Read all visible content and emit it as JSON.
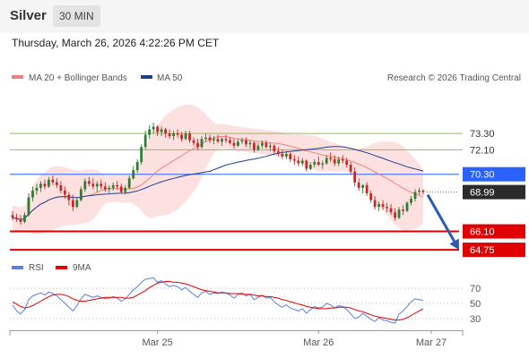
{
  "header": {
    "instrument": "Silver",
    "interval": "30 MIN",
    "datetime": "Thursday, March 26, 2026 4:22:26 PM CET"
  },
  "legend": {
    "ma20": "MA 20 + Bollinger Bands",
    "ma50": "MA 50",
    "credit": "Research © 2026 Trading Central"
  },
  "rsi_legend": {
    "rsi": "RSI",
    "ma": "9MA"
  },
  "colors": {
    "candle_up": "#2e7d32",
    "candle_down": "#c62828",
    "ma20": "#f08080",
    "ma50": "#1f3f8f",
    "band_fill": "#fde0e0",
    "resistance": "#8bc34a",
    "pivot": "#2962ff",
    "support": "#e00000",
    "last": "#2b2b2b",
    "arrow": "#2a5bb0",
    "rsi": "#5b7fe0",
    "rsi_ma": "#e00000"
  },
  "chart_data": {
    "type": "candlestick",
    "price_ylim": [
      63.9,
      76.2
    ],
    "x_axis_labels": [
      {
        "label": "Mar 25",
        "index": 36
      },
      {
        "label": "Mar 26",
        "index": 76
      },
      {
        "label": "Mar 27",
        "index": 104
      }
    ],
    "levels": [
      {
        "value": 73.3,
        "label": "73.30",
        "kind": "resistance"
      },
      {
        "value": 72.1,
        "label": "72.10",
        "kind": "resistance"
      },
      {
        "value": 70.3,
        "label": "70.30",
        "kind": "pivot"
      },
      {
        "value": 68.99,
        "label": "68.99",
        "kind": "last"
      },
      {
        "value": 66.1,
        "label": "66.10",
        "kind": "support"
      },
      {
        "value": 64.75,
        "label": "64.75",
        "kind": "support"
      }
    ],
    "forecast_arrow": {
      "from": 68.99,
      "to": 64.75
    },
    "candles": [
      [
        67.3,
        67.6,
        66.9,
        67.1
      ],
      [
        67.1,
        67.4,
        66.8,
        67.0
      ],
      [
        67.0,
        67.3,
        66.6,
        66.8
      ],
      [
        66.8,
        67.5,
        66.7,
        67.3
      ],
      [
        67.3,
        68.9,
        67.2,
        68.6
      ],
      [
        68.6,
        69.4,
        68.3,
        69.1
      ],
      [
        69.1,
        69.6,
        68.8,
        69.3
      ],
      [
        69.3,
        69.8,
        69.0,
        69.6
      ],
      [
        69.6,
        69.9,
        69.2,
        69.4
      ],
      [
        69.4,
        70.1,
        69.3,
        69.9
      ],
      [
        69.9,
        70.2,
        69.5,
        69.7
      ],
      [
        69.7,
        70.0,
        69.3,
        69.5
      ],
      [
        69.5,
        69.8,
        68.9,
        69.1
      ],
      [
        69.1,
        69.4,
        68.5,
        68.8
      ],
      [
        68.8,
        69.0,
        68.0,
        68.4
      ],
      [
        68.4,
        68.8,
        67.6,
        67.9
      ],
      [
        67.9,
        68.6,
        67.8,
        68.4
      ],
      [
        68.4,
        69.4,
        68.3,
        69.2
      ],
      [
        69.2,
        70.0,
        69.0,
        69.8
      ],
      [
        69.8,
        70.1,
        69.4,
        69.6
      ],
      [
        69.6,
        70.0,
        69.2,
        69.4
      ],
      [
        69.4,
        69.8,
        69.0,
        69.6
      ],
      [
        69.6,
        69.9,
        69.2,
        69.4
      ],
      [
        69.4,
        69.7,
        69.0,
        69.2
      ],
      [
        69.2,
        69.5,
        68.9,
        69.3
      ],
      [
        69.3,
        69.7,
        69.1,
        69.5
      ],
      [
        69.5,
        69.8,
        69.2,
        69.4
      ],
      [
        69.4,
        69.6,
        68.9,
        69.0
      ],
      [
        69.0,
        69.5,
        68.8,
        69.3
      ],
      [
        69.3,
        70.2,
        69.2,
        70.0
      ],
      [
        70.0,
        70.9,
        69.9,
        70.6
      ],
      [
        70.6,
        71.4,
        70.4,
        71.2
      ],
      [
        71.2,
        72.5,
        71.0,
        72.3
      ],
      [
        72.3,
        73.5,
        72.1,
        73.2
      ],
      [
        73.2,
        73.9,
        72.9,
        73.6
      ],
      [
        73.6,
        74.1,
        73.3,
        73.8
      ],
      [
        73.8,
        73.9,
        73.1,
        73.4
      ],
      [
        73.4,
        73.8,
        73.1,
        73.6
      ],
      [
        73.6,
        73.7,
        73.0,
        73.3
      ],
      [
        73.3,
        73.6,
        72.9,
        73.1
      ],
      [
        73.1,
        73.5,
        72.8,
        73.3
      ],
      [
        73.3,
        73.6,
        73.0,
        73.2
      ],
      [
        73.2,
        73.4,
        72.7,
        72.9
      ],
      [
        72.9,
        73.5,
        72.8,
        73.3
      ],
      [
        73.3,
        73.5,
        72.6,
        72.8
      ],
      [
        72.8,
        73.0,
        72.4,
        72.6
      ],
      [
        72.6,
        72.9,
        72.1,
        72.3
      ],
      [
        72.3,
        73.1,
        72.2,
        72.9
      ],
      [
        72.9,
        73.3,
        72.7,
        73.0
      ],
      [
        73.0,
        73.2,
        72.6,
        72.8
      ],
      [
        72.8,
        73.1,
        72.5,
        72.9
      ],
      [
        72.9,
        73.2,
        72.6,
        72.7
      ],
      [
        72.7,
        73.0,
        72.4,
        72.9
      ],
      [
        72.9,
        73.2,
        72.6,
        72.8
      ],
      [
        72.8,
        73.0,
        72.5,
        72.6
      ],
      [
        72.6,
        72.9,
        72.2,
        72.4
      ],
      [
        72.4,
        72.9,
        72.3,
        72.7
      ],
      [
        72.7,
        73.0,
        72.5,
        72.8
      ],
      [
        72.8,
        73.0,
        72.3,
        72.5
      ],
      [
        72.5,
        72.8,
        72.2,
        72.6
      ],
      [
        72.6,
        72.7,
        71.9,
        72.1
      ],
      [
        72.1,
        72.6,
        72.0,
        72.4
      ],
      [
        72.4,
        72.8,
        72.2,
        72.6
      ],
      [
        72.6,
        72.8,
        72.2,
        72.3
      ],
      [
        72.3,
        72.6,
        72.0,
        72.4
      ],
      [
        72.4,
        72.5,
        71.8,
        72.0
      ],
      [
        72.0,
        72.3,
        71.6,
        71.8
      ],
      [
        71.8,
        72.1,
        71.4,
        71.6
      ],
      [
        71.6,
        72.0,
        71.4,
        71.8
      ],
      [
        71.8,
        71.9,
        71.2,
        71.4
      ],
      [
        71.4,
        71.7,
        71.0,
        71.3
      ],
      [
        71.3,
        71.6,
        70.9,
        71.1
      ],
      [
        71.1,
        71.5,
        70.9,
        71.3
      ],
      [
        71.3,
        71.4,
        70.5,
        70.7
      ],
      [
        70.7,
        71.2,
        70.6,
        71.0
      ],
      [
        71.0,
        71.4,
        70.8,
        71.2
      ],
      [
        71.2,
        71.6,
        70.9,
        71.0
      ],
      [
        71.0,
        71.3,
        70.7,
        71.1
      ],
      [
        71.1,
        71.7,
        71.0,
        71.5
      ],
      [
        71.5,
        71.9,
        71.2,
        71.4
      ],
      [
        71.4,
        71.7,
        70.9,
        71.1
      ],
      [
        71.1,
        71.6,
        70.9,
        71.4
      ],
      [
        71.4,
        71.7,
        71.1,
        71.3
      ],
      [
        71.3,
        71.5,
        70.8,
        71.0
      ],
      [
        71.0,
        71.2,
        70.3,
        70.5
      ],
      [
        70.5,
        70.8,
        69.4,
        69.7
      ],
      [
        69.7,
        70.0,
        69.1,
        69.3
      ],
      [
        69.3,
        69.6,
        68.9,
        69.5
      ],
      [
        69.5,
        69.7,
        68.7,
        68.9
      ],
      [
        68.9,
        69.1,
        68.2,
        68.4
      ],
      [
        68.4,
        68.7,
        67.7,
        67.9
      ],
      [
        67.9,
        68.3,
        67.6,
        68.1
      ],
      [
        68.1,
        68.4,
        67.7,
        67.9
      ],
      [
        67.9,
        68.2,
        67.5,
        67.8
      ],
      [
        67.8,
        68.1,
        67.3,
        67.5
      ],
      [
        67.5,
        67.8,
        66.9,
        67.1
      ],
      [
        67.1,
        67.9,
        67.0,
        67.7
      ],
      [
        67.7,
        68.0,
        67.3,
        67.6
      ],
      [
        67.6,
        68.3,
        67.5,
        68.2
      ],
      [
        68.2,
        68.7,
        68.0,
        68.5
      ],
      [
        68.5,
        69.2,
        68.3,
        69.0
      ],
      [
        69.0,
        69.3,
        68.8,
        69.1
      ],
      [
        69.1,
        69.2,
        68.8,
        68.99
      ]
    ],
    "rsi": {
      "levels": [
        70,
        50,
        30
      ],
      "ylim": [
        18,
        82
      ],
      "values": [
        48,
        40,
        36,
        42,
        55,
        60,
        62,
        64,
        61,
        65,
        63,
        60,
        55,
        50,
        45,
        40,
        47,
        56,
        62,
        60,
        58,
        60,
        58,
        56,
        57,
        59,
        57,
        53,
        56,
        62,
        68,
        72,
        78,
        82,
        83,
        84,
        78,
        80,
        76,
        72,
        74,
        72,
        68,
        71,
        66,
        62,
        58,
        64,
        66,
        62,
        64,
        63,
        65,
        64,
        61,
        57,
        62,
        64,
        60,
        62,
        55,
        58,
        61,
        57,
        58,
        52,
        48,
        45,
        48,
        44,
        42,
        40,
        43,
        37,
        42,
        46,
        44,
        45,
        50,
        48,
        44,
        47,
        46,
        42,
        36,
        30,
        32,
        37,
        33,
        29,
        26,
        31,
        28,
        27,
        25,
        24,
        36,
        40,
        46,
        52,
        56,
        55,
        54
      ],
      "ma_values": [
        52,
        49,
        46,
        44,
        45,
        47,
        50,
        53,
        56,
        59,
        61,
        62,
        62,
        61,
        59,
        56,
        54,
        53,
        53,
        54,
        55,
        56,
        57,
        58,
        58,
        58,
        58,
        58,
        57,
        57,
        58,
        61,
        64,
        67,
        71,
        74,
        77,
        78,
        79,
        79,
        78,
        78,
        77,
        76,
        74,
        72,
        70,
        68,
        67,
        66,
        65,
        64,
        64,
        64,
        63,
        63,
        63,
        62,
        62,
        62,
        61,
        60,
        60,
        59,
        59,
        58,
        57,
        55,
        54,
        52,
        51,
        49,
        48,
        46,
        45,
        44,
        43,
        43,
        43,
        44,
        44,
        45,
        45,
        45,
        44,
        42,
        40,
        39,
        37,
        35,
        33,
        32,
        31,
        30,
        29,
        28,
        28,
        29,
        31,
        34,
        37,
        40,
        43
      ]
    }
  }
}
